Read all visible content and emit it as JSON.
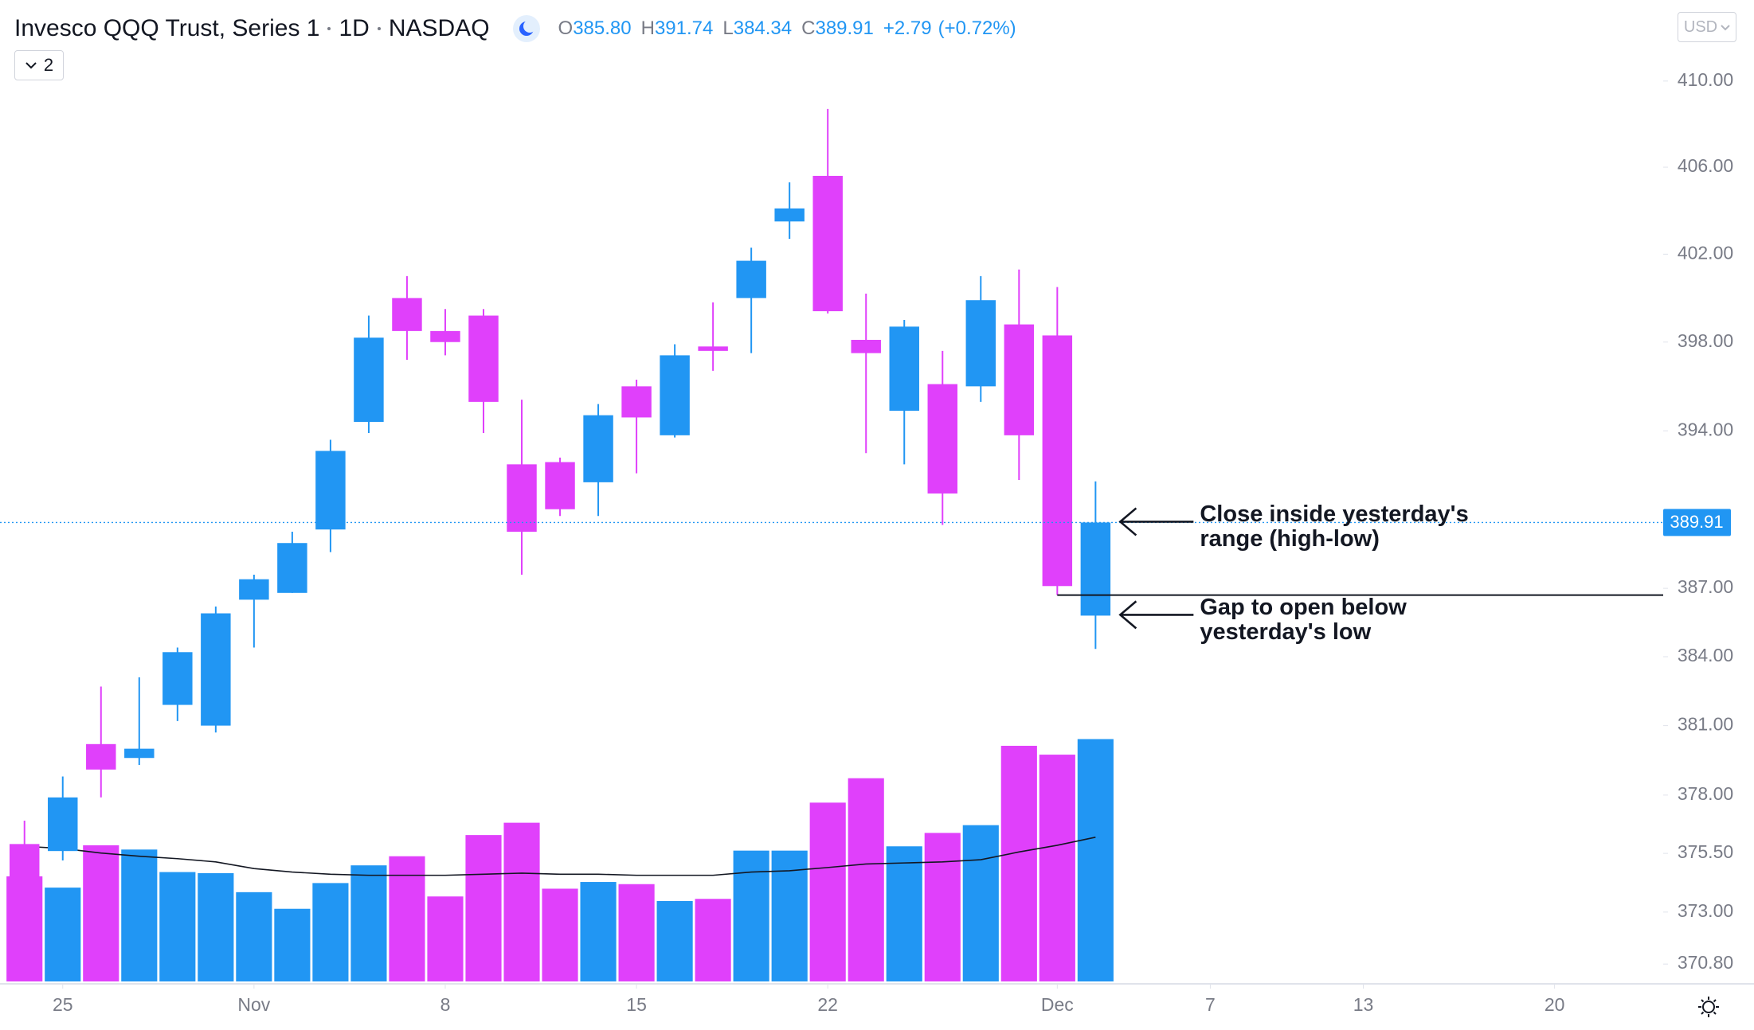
{
  "chart_data": {
    "type": "candlestick",
    "title": "Invesco QQQ Trust, Series 1",
    "interval": "1D",
    "exchange": "NASDAQ",
    "header": {
      "open_label": "O",
      "open": "385.80",
      "high_label": "H",
      "high": "391.74",
      "low_label": "L",
      "low": "384.34",
      "close_label": "C",
      "close": "389.91",
      "change": "+2.79",
      "change_pct": "(+0.72%)"
    },
    "currency": "USD",
    "indicator_count": 2,
    "up_color": "#2196f3",
    "down_color": "#e040fb",
    "ma_color": "#131722",
    "log": true,
    "x": [
      -1,
      0,
      1,
      2,
      3,
      4,
      5,
      6,
      7,
      8,
      9,
      10,
      11,
      12,
      13,
      14,
      15,
      16,
      17,
      18,
      19,
      20,
      21,
      22,
      23,
      24,
      25,
      26,
      27
    ],
    "open": [
      375.9,
      375.6,
      380.2,
      379.6,
      381.9,
      381.0,
      386.5,
      386.8,
      389.6,
      394.4,
      400.0,
      398.5,
      399.2,
      392.5,
      392.6,
      391.7,
      396.0,
      393.8,
      397.8,
      400.0,
      403.5,
      405.6,
      398.1,
      394.9,
      396.1,
      396.0,
      398.8,
      398.3,
      385.8
    ],
    "high": [
      376.9,
      378.8,
      382.7,
      383.1,
      384.4,
      386.2,
      387.6,
      389.5,
      393.6,
      399.2,
      401.0,
      399.5,
      399.5,
      395.4,
      392.8,
      395.2,
      396.3,
      397.9,
      399.8,
      402.3,
      405.3,
      408.7,
      400.2,
      399.0,
      397.6,
      401.0,
      401.3,
      400.5,
      391.74
    ],
    "low": [
      373.8,
      375.2,
      377.9,
      379.3,
      381.2,
      380.7,
      384.4,
      386.8,
      388.6,
      393.9,
      397.2,
      397.4,
      393.9,
      387.6,
      390.2,
      390.2,
      392.1,
      393.7,
      396.7,
      397.5,
      402.7,
      399.3,
      393.0,
      392.5,
      389.8,
      395.3,
      391.8,
      386.7,
      384.34
    ],
    "close": [
      374.3,
      377.9,
      379.1,
      380.0,
      384.2,
      385.9,
      387.4,
      389.0,
      393.1,
      398.2,
      398.5,
      398.0,
      395.3,
      389.5,
      390.5,
      394.7,
      394.6,
      397.4,
      397.6,
      401.7,
      404.1,
      399.4,
      397.5,
      398.7,
      391.2,
      399.9,
      393.8,
      387.1,
      389.91
    ],
    "volume": [
      39.2,
      35.0,
      50.8,
      49.2,
      40.8,
      40.4,
      33.3,
      27.1,
      36.7,
      43.3,
      46.7,
      31.7,
      54.6,
      59.2,
      34.6,
      37.1,
      36.3,
      30.0,
      30.8,
      48.8,
      48.8,
      66.7,
      75.8,
      50.4,
      55.4,
      58.3,
      87.9,
      84.6,
      90.4
    ],
    "volume_ma": [
      50.4,
      49.6,
      47.9,
      46.7,
      45.8,
      44.6,
      42.1,
      40.8,
      40.0,
      39.6,
      39.6,
      39.6,
      40.0,
      40.4,
      40.0,
      40.0,
      39.6,
      39.6,
      39.6,
      40.8,
      41.3,
      42.5,
      43.8,
      44.2,
      44.6,
      45.4,
      48.3,
      50.8,
      53.8
    ],
    "vlim": [
      0,
      125
    ],
    "ylim": [
      370,
      413.8
    ],
    "yticks": [
      {
        "value": 410,
        "label": "410.00"
      },
      {
        "value": 406,
        "label": "406.00"
      },
      {
        "value": 402,
        "label": "402.00"
      },
      {
        "value": 398,
        "label": "398.00"
      },
      {
        "value": 394,
        "label": "394.00"
      },
      {
        "value": 387,
        "label": "387.00"
      },
      {
        "value": 384,
        "label": "384.00"
      },
      {
        "value": 381,
        "label": "381.00"
      },
      {
        "value": 378,
        "label": "378.00"
      },
      {
        "value": 375.5,
        "label": "375.50"
      },
      {
        "value": 373,
        "label": "373.00"
      },
      {
        "value": 370.8,
        "label": "370.80"
      }
    ],
    "xlim": [
      -1.64,
      41.84
    ],
    "xticks": [
      {
        "value": 0,
        "label": "25"
      },
      {
        "value": 5,
        "label": "Nov"
      },
      {
        "value": 10,
        "label": "8"
      },
      {
        "value": 15,
        "label": "15"
      },
      {
        "value": 20,
        "label": "22"
      },
      {
        "value": 26,
        "label": "Dec"
      },
      {
        "value": 30,
        "label": "7"
      },
      {
        "value": 34,
        "label": "13"
      },
      {
        "value": 39,
        "label": "20"
      }
    ],
    "annotations": [
      {
        "lines": [
          "Close inside yesterday's",
          "range (high-low)"
        ]
      },
      {
        "lines": [
          "Gap to open below",
          "yesterday's low"
        ]
      }
    ]
  }
}
